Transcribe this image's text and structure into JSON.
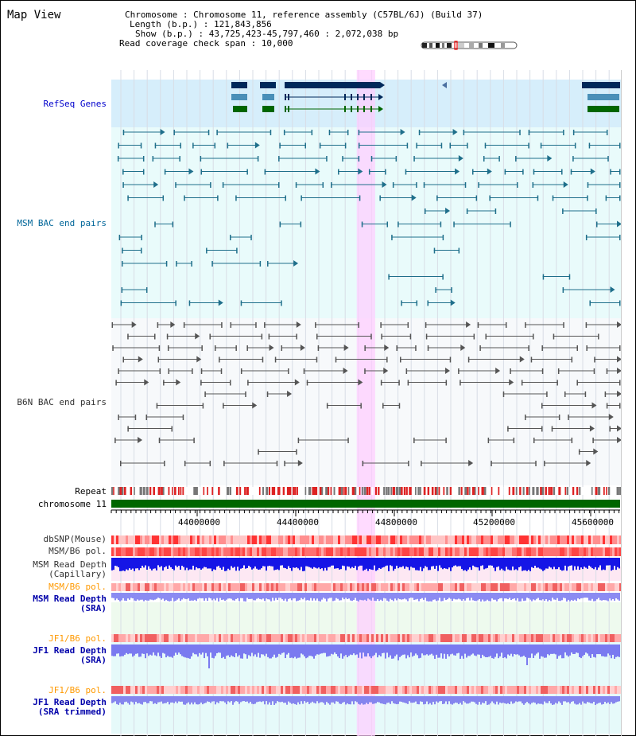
{
  "view": {
    "title": "Map View",
    "info": [
      "Chromosome     : Chromosome 11, reference assembly (C57BL/6J) (Build 37)",
      "Length (b.p.) : 121,843,856",
      "Show (b.p.) : 43,725,423-45,797,460 : 2,072,038 bp",
      "Read coverage check span : 10,000"
    ],
    "region": {
      "start": 43725423,
      "end": 45797460
    },
    "highlight": {
      "start": 44725000,
      "end": 44800000
    }
  },
  "tracks": {
    "refseq": "RefSeq Genes",
    "msm_bac": "MSM BAC end pairs",
    "b6n_bac": "B6N BAC end pairs",
    "repeat": "Repeat",
    "chromosome": "chromosome 11",
    "dbsnp": "dbSNP(Mouse)",
    "msm_pol1": "MSM/B6 pol.",
    "msm_depth_cap_1": "MSM Read Depth",
    "msm_depth_cap_2": "(Capillary)",
    "msm_pol2": "MSM/B6 pol.",
    "msm_depth_sra_1": "MSM Read Depth",
    "msm_depth_sra_2": "(SRA)",
    "jf1_pol1": "JF1/B6 pol.",
    "jf1_depth_sra_1": "JF1 Read Depth",
    "jf1_depth_sra_2": "(SRA)",
    "jf1_pol2": "JF1/B6 pol.",
    "jf1_depth_trim_1": "JF1 Read Depth",
    "jf1_depth_trim_2": "(SRA trimmed)"
  },
  "axis": {
    "ticks": [
      "44000000",
      "44400000",
      "44800000",
      "45200000",
      "45600000"
    ]
  },
  "colors": {
    "refseq_label": "#0000cc",
    "msm_label": "#006699",
    "b6n_label": "#333333",
    "orange": "#ff9900",
    "depth_label": "#0000aa",
    "gene_dark": "#00285a",
    "gene_mid": "#4a8fb8",
    "gene_green": "#006600",
    "chromosome": "#006600",
    "highlight": "#ffccff"
  }
}
